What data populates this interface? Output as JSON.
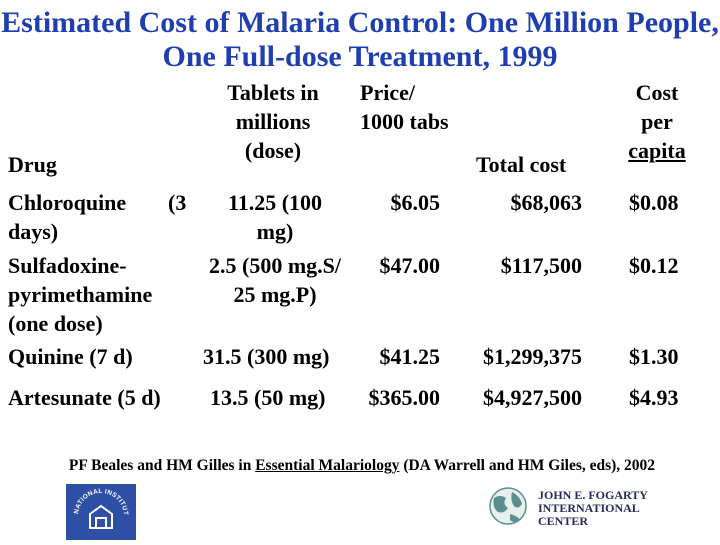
{
  "title": {
    "line1": "Estimated Cost of Malaria Control: One Million People,",
    "line2": "One Full-dose Treatment, 1999"
  },
  "table": {
    "headers": {
      "drug": "Drug",
      "tablets": [
        "Tablets in",
        "millions",
        "(dose)"
      ],
      "price": [
        "Price/",
        "1000 tabs"
      ],
      "total": "Total cost",
      "per_capita": [
        "Cost",
        "per",
        "capita"
      ]
    },
    "rows": [
      {
        "drug": [
          "Chloroquine",
          "(3",
          "days)"
        ],
        "tablets": [
          "11.25 (100",
          "mg)"
        ],
        "price": "$6.05",
        "total": "$68,063",
        "per_capita": "$0.08"
      },
      {
        "drug": [
          "Sulfadoxine-",
          "pyrimethamine",
          "(one dose)"
        ],
        "tablets": [
          "2.5 (500 mg.S/",
          "25 mg.P)"
        ],
        "price": "$47.00",
        "total": "$117,500",
        "per_capita": "$0.12"
      },
      {
        "drug": [
          "Quinine (7 d)"
        ],
        "tablets": [
          "31.5 (300 mg)"
        ],
        "price": "$41.25",
        "total": "$1,299,375",
        "per_capita": "$1.30"
      },
      {
        "drug": [
          "Artesunate (5 d)"
        ],
        "tablets": [
          "13.5 (50 mg)"
        ],
        "price": "$365.00",
        "total": "$4,927,500",
        "per_capita": "$4.93"
      }
    ]
  },
  "citation": {
    "prefix": "PF Beales and HM Gilles in ",
    "book": "Essential Malariology",
    "suffix": " (DA Warrell and HM Giles, eds), 2002"
  },
  "logos": {
    "nih": {
      "text": "NATIONAL INSTITUTES OF HEALTH",
      "color": "#2e4fa6"
    },
    "fogarty": {
      "line1": "JOHN E. FOGARTY",
      "line2": "INTERNATIONAL",
      "line3": "CENTER",
      "color": "#2a2a5a"
    }
  },
  "colors": {
    "title": "#1f3fb0",
    "text": "#000000",
    "background": "#ffffff"
  }
}
